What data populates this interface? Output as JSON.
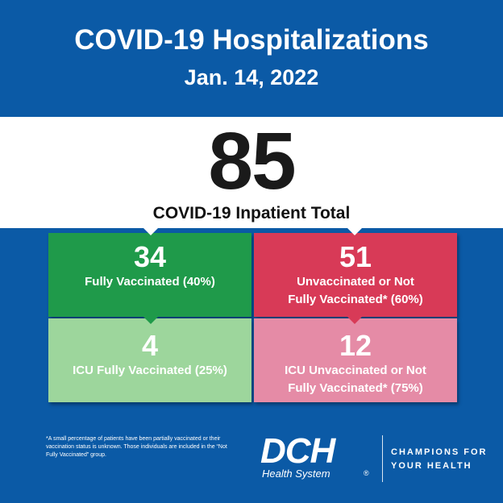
{
  "header": {
    "title": "COVID-19 Hospitalizations",
    "date": "Jan. 14, 2022"
  },
  "total": {
    "value": "85",
    "label": "COVID-19 Inpatient Total"
  },
  "boxes": {
    "fully_vaccinated": {
      "value": "34",
      "line1": "Fully Vaccinated (40%)",
      "line2": ""
    },
    "unvaccinated": {
      "value": "51",
      "line1": "Unvaccinated or Not",
      "line2": "Fully Vaccinated* (60%)"
    },
    "icu_fully_vaccinated": {
      "value": "4",
      "line1": "ICU Fully Vaccinated (25%)",
      "line2": ""
    },
    "icu_unvaccinated": {
      "value": "12",
      "line1": "ICU Unvaccinated or Not",
      "line2": "Fully Vaccinated* (75%)"
    }
  },
  "footnote": "*A small percentage of patients have been partially vaccinated or their vaccination status is unknown. Those individuals are included in the “Not Fully Vaccinated” group.",
  "logo": {
    "letters": "DCH",
    "subtitle": "Health System",
    "registered": "®"
  },
  "tagline": {
    "line1": "CHAMPIONS FOR",
    "line2": "YOUR HEALTH"
  },
  "colors": {
    "background": "#0b5aa6",
    "green": "#1f9a4a",
    "red": "#d83a57",
    "light_green": "#9dd69c",
    "pink": "#e58ba6"
  }
}
